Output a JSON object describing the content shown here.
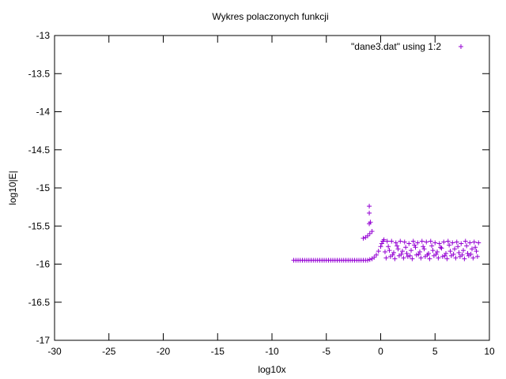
{
  "chart_data": {
    "type": "scatter",
    "title": "Wykres polaczonych funkcji",
    "xlabel": "log10x",
    "ylabel": "log10|E|",
    "xlim": [
      -30,
      10
    ],
    "ylim": [
      -17,
      -13
    ],
    "x_ticks": [
      "-30",
      "-25",
      "-20",
      "-15",
      "-10",
      "-5",
      "0",
      "5",
      "10"
    ],
    "y_ticks": [
      "-13",
      "-13.5",
      "-14",
      "-14.5",
      "-15",
      "-15.5",
      "-16",
      "-16.5",
      "-17"
    ],
    "legend_position": "top-right",
    "grid": false,
    "series": [
      {
        "name": "\"dane3.dat\" using 1:2",
        "color": "#9400d3",
        "marker": "plus",
        "points": [
          [
            -8.0,
            -15.95
          ],
          [
            -7.8,
            -15.95
          ],
          [
            -7.6,
            -15.95
          ],
          [
            -7.4,
            -15.95
          ],
          [
            -7.2,
            -15.95
          ],
          [
            -7.0,
            -15.95
          ],
          [
            -6.8,
            -15.95
          ],
          [
            -6.6,
            -15.95
          ],
          [
            -6.4,
            -15.95
          ],
          [
            -6.2,
            -15.95
          ],
          [
            -6.0,
            -15.95
          ],
          [
            -5.8,
            -15.95
          ],
          [
            -5.6,
            -15.95
          ],
          [
            -5.4,
            -15.95
          ],
          [
            -5.2,
            -15.95
          ],
          [
            -5.0,
            -15.95
          ],
          [
            -4.8,
            -15.95
          ],
          [
            -4.6,
            -15.95
          ],
          [
            -4.4,
            -15.95
          ],
          [
            -4.2,
            -15.95
          ],
          [
            -4.0,
            -15.95
          ],
          [
            -3.8,
            -15.95
          ],
          [
            -3.6,
            -15.95
          ],
          [
            -3.4,
            -15.95
          ],
          [
            -3.2,
            -15.95
          ],
          [
            -3.0,
            -15.95
          ],
          [
            -2.8,
            -15.95
          ],
          [
            -2.6,
            -15.95
          ],
          [
            -2.4,
            -15.95
          ],
          [
            -2.2,
            -15.95
          ],
          [
            -2.0,
            -15.95
          ],
          [
            -1.8,
            -15.95
          ],
          [
            -1.6,
            -15.95
          ],
          [
            -1.4,
            -15.95
          ],
          [
            -1.2,
            -15.95
          ],
          [
            -1.0,
            -15.94
          ],
          [
            -0.8,
            -15.93
          ],
          [
            -0.6,
            -15.91
          ],
          [
            -0.4,
            -15.88
          ],
          [
            -0.2,
            -15.83
          ],
          [
            0.0,
            -15.77
          ],
          [
            0.1,
            -15.73
          ],
          [
            0.2,
            -15.7
          ],
          [
            0.3,
            -15.68
          ],
          [
            -1.6,
            -15.66
          ],
          [
            -1.4,
            -15.65
          ],
          [
            -1.2,
            -15.63
          ],
          [
            -1.0,
            -15.6
          ],
          [
            -0.8,
            -15.57
          ],
          [
            -1.05,
            -15.47
          ],
          [
            -0.95,
            -15.45
          ],
          [
            -1.05,
            -15.33
          ],
          [
            -1.05,
            -15.24
          ],
          [
            0.6,
            -15.7
          ],
          [
            1.0,
            -15.7
          ],
          [
            1.4,
            -15.72
          ],
          [
            1.8,
            -15.7
          ],
          [
            2.2,
            -15.71
          ],
          [
            2.6,
            -15.73
          ],
          [
            3.0,
            -15.7
          ],
          [
            3.4,
            -15.72
          ],
          [
            3.8,
            -15.7
          ],
          [
            4.2,
            -15.71
          ],
          [
            4.6,
            -15.7
          ],
          [
            5.0,
            -15.72
          ],
          [
            5.4,
            -15.73
          ],
          [
            5.8,
            -15.71
          ],
          [
            6.2,
            -15.7
          ],
          [
            6.6,
            -15.72
          ],
          [
            7.0,
            -15.71
          ],
          [
            7.4,
            -15.73
          ],
          [
            7.8,
            -15.7
          ],
          [
            8.2,
            -15.72
          ],
          [
            8.6,
            -15.71
          ],
          [
            9.0,
            -15.72
          ],
          [
            0.4,
            -15.84
          ],
          [
            0.8,
            -15.82
          ],
          [
            1.2,
            -15.85
          ],
          [
            1.6,
            -15.8
          ],
          [
            2.0,
            -15.83
          ],
          [
            2.4,
            -15.86
          ],
          [
            2.8,
            -15.82
          ],
          [
            3.2,
            -15.78
          ],
          [
            3.6,
            -15.84
          ],
          [
            4.0,
            -15.8
          ],
          [
            4.4,
            -15.86
          ],
          [
            4.8,
            -15.82
          ],
          [
            5.2,
            -15.84
          ],
          [
            5.6,
            -15.79
          ],
          [
            6.0,
            -15.86
          ],
          [
            6.4,
            -15.83
          ],
          [
            6.8,
            -15.8
          ],
          [
            7.2,
            -15.85
          ],
          [
            7.6,
            -15.82
          ],
          [
            8.0,
            -15.86
          ],
          [
            8.4,
            -15.8
          ],
          [
            8.8,
            -15.83
          ],
          [
            0.5,
            -15.92
          ],
          [
            0.9,
            -15.9
          ],
          [
            1.3,
            -15.93
          ],
          [
            1.7,
            -15.89
          ],
          [
            2.1,
            -15.92
          ],
          [
            2.5,
            -15.9
          ],
          [
            2.9,
            -15.93
          ],
          [
            3.3,
            -15.88
          ],
          [
            3.7,
            -15.92
          ],
          [
            4.1,
            -15.9
          ],
          [
            4.5,
            -15.93
          ],
          [
            4.9,
            -15.89
          ],
          [
            5.3,
            -15.92
          ],
          [
            5.7,
            -15.9
          ],
          [
            6.1,
            -15.93
          ],
          [
            6.5,
            -15.89
          ],
          [
            6.9,
            -15.92
          ],
          [
            7.3,
            -15.9
          ],
          [
            7.7,
            -15.93
          ],
          [
            8.1,
            -15.89
          ],
          [
            8.5,
            -15.92
          ],
          [
            8.9,
            -15.9
          ],
          [
            0.7,
            -15.77
          ],
          [
            1.5,
            -15.76
          ],
          [
            2.3,
            -15.78
          ],
          [
            3.1,
            -15.75
          ],
          [
            3.9,
            -15.77
          ],
          [
            4.7,
            -15.76
          ],
          [
            5.5,
            -15.78
          ],
          [
            6.3,
            -15.75
          ],
          [
            7.1,
            -15.77
          ],
          [
            7.9,
            -15.76
          ],
          [
            8.7,
            -15.78
          ],
          [
            1.1,
            -15.88
          ],
          [
            1.9,
            -15.87
          ],
          [
            2.7,
            -15.89
          ],
          [
            3.5,
            -15.87
          ],
          [
            4.3,
            -15.88
          ],
          [
            5.1,
            -15.87
          ],
          [
            5.9,
            -15.89
          ],
          [
            6.7,
            -15.87
          ],
          [
            7.5,
            -15.88
          ],
          [
            8.3,
            -15.87
          ]
        ]
      }
    ]
  }
}
